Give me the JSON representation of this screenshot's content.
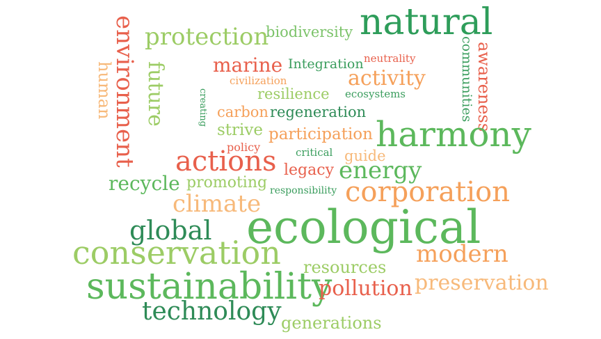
{
  "colors": {
    "dark_green": "#2e8b57",
    "medium_green": "#5cb85c",
    "light_green": "#9ccc65",
    "orange": "#f5a05a",
    "light_orange": "#f7b97a",
    "red": "#e8604c"
  },
  "words": [
    {
      "text": "natural",
      "color": "#2e9d5a"
    },
    {
      "text": "protection",
      "color": "#9ccc65"
    },
    {
      "text": "biodiversity",
      "color": "#7cc36a"
    },
    {
      "text": "environment",
      "color": "#e8604c"
    },
    {
      "text": "human",
      "color": "#f7b97a"
    },
    {
      "text": "future",
      "color": "#9ccc65"
    },
    {
      "text": "marine",
      "color": "#e8604c"
    },
    {
      "text": "Integration",
      "color": "#3a9d5d"
    },
    {
      "text": "neutrality",
      "color": "#e8604c"
    },
    {
      "text": "civilization",
      "color": "#f5a05a"
    },
    {
      "text": "activity",
      "color": "#f5a05a"
    },
    {
      "text": "communities",
      "color": "#3a9d5d"
    },
    {
      "text": "awareness",
      "color": "#e8604c"
    },
    {
      "text": "creating",
      "color": "#3a9d5d"
    },
    {
      "text": "resilience",
      "color": "#9ccc65"
    },
    {
      "text": "ecosystems",
      "color": "#3a9d5d"
    },
    {
      "text": "carbon",
      "color": "#f5a05a"
    },
    {
      "text": "regeneration",
      "color": "#2e8b57"
    },
    {
      "text": "strive",
      "color": "#9ccc65"
    },
    {
      "text": "participation",
      "color": "#f5a05a"
    },
    {
      "text": "harmony",
      "color": "#5cb85c"
    },
    {
      "text": "policy",
      "color": "#e8604c"
    },
    {
      "text": "critical",
      "color": "#3a9d5d"
    },
    {
      "text": "guide",
      "color": "#f7b97a"
    },
    {
      "text": "actions",
      "color": "#e8604c"
    },
    {
      "text": "legacy",
      "color": "#e8604c"
    },
    {
      "text": "energy",
      "color": "#5cb85c"
    },
    {
      "text": "recycle",
      "color": "#5cb85c"
    },
    {
      "text": "promoting",
      "color": "#9ccc65"
    },
    {
      "text": "responsibility",
      "color": "#3a9d5d"
    },
    {
      "text": "corporation",
      "color": "#f5a05a"
    },
    {
      "text": "climate",
      "color": "#f7b97a"
    },
    {
      "text": "ecological",
      "color": "#5cb85c"
    },
    {
      "text": "global",
      "color": "#2e8b57"
    },
    {
      "text": "conservation",
      "color": "#9ccc65"
    },
    {
      "text": "modern",
      "color": "#f5a05a"
    },
    {
      "text": "resources",
      "color": "#9ccc65"
    },
    {
      "text": "sustainability",
      "color": "#5cb85c"
    },
    {
      "text": "pollution",
      "color": "#e8604c"
    },
    {
      "text": "preservation",
      "color": "#f7b97a"
    },
    {
      "text": "technology",
      "color": "#2e8b57"
    },
    {
      "text": "generations",
      "color": "#9ccc65"
    }
  ]
}
